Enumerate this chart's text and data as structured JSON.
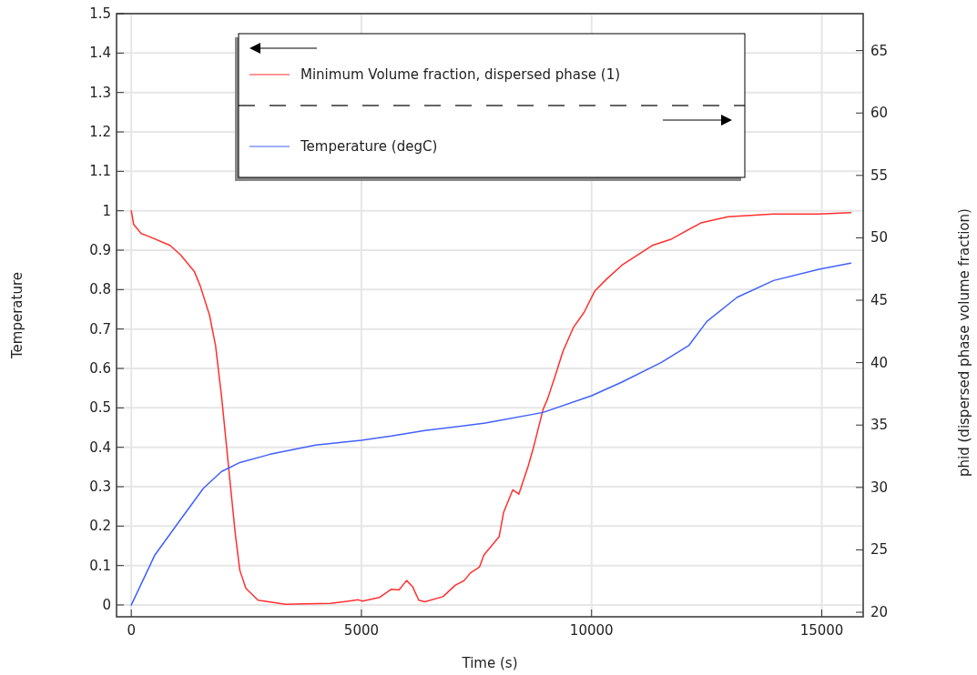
{
  "chart_data": {
    "type": "line",
    "xlabel": "Time (s)",
    "ylabel": "Temperature",
    "y2label": "phid (dispersed phase volume fraction)",
    "xlim": [
      -320,
      15900
    ],
    "ylim": [
      -0.03,
      1.5
    ],
    "y2lim": [
      19.64,
      67.96
    ],
    "xticks": [
      0,
      5000,
      10000,
      15000
    ],
    "yticks": [
      0,
      0.1,
      0.2,
      0.3,
      0.4,
      0.5,
      0.6,
      0.7,
      0.8,
      0.9,
      1,
      1.1,
      1.2,
      1.3,
      1.4,
      1.5
    ],
    "y2ticks": [
      20,
      25,
      30,
      35,
      40,
      45,
      50,
      55,
      60,
      65
    ],
    "grid": true,
    "legend": "top",
    "line_style": "solid",
    "marker": "none",
    "series": [
      {
        "name": "Minimum Volume fraction, dispersed phase (1)",
        "color": "#ff3030",
        "axis": "y",
        "x": [
          0,
          53,
          217,
          381,
          842,
          1073,
          1370,
          1502,
          1700,
          1831,
          1963,
          2062,
          2160,
          2259,
          2358,
          2490,
          2753,
          3346,
          4334,
          4730,
          4928,
          5026,
          5388,
          5652,
          5817,
          5981,
          6113,
          6245,
          6377,
          6772,
          7036,
          7233,
          7365,
          7563,
          7662,
          7826,
          7991,
          8089,
          8287,
          8419,
          8617,
          8748,
          8946,
          9045,
          9209,
          9374,
          9605,
          9836,
          10067,
          10330,
          10660,
          11318,
          11713,
          12372,
          12964,
          13953,
          14941,
          15632
        ],
        "values": [
          1.0,
          0.965,
          0.942,
          0.935,
          0.912,
          0.888,
          0.846,
          0.808,
          0.735,
          0.658,
          0.527,
          0.411,
          0.296,
          0.181,
          0.088,
          0.042,
          0.012,
          0.002,
          0.004,
          0.01,
          0.013,
          0.01,
          0.019,
          0.04,
          0.038,
          0.062,
          0.046,
          0.012,
          0.008,
          0.021,
          0.05,
          0.062,
          0.081,
          0.096,
          0.127,
          0.15,
          0.173,
          0.235,
          0.292,
          0.281,
          0.35,
          0.404,
          0.496,
          0.523,
          0.581,
          0.642,
          0.704,
          0.742,
          0.796,
          0.827,
          0.862,
          0.912,
          0.927,
          0.969,
          0.985,
          0.992,
          0.992,
          0.995
        ]
      },
      {
        "name": "Temperature (degC)",
        "color": "#4060ff",
        "axis": "y2",
        "x": [
          0,
          514,
          1040,
          1567,
          1963,
          2358,
          3017,
          4005,
          4993,
          5652,
          6377,
          7694,
          8946,
          10000,
          10660,
          11516,
          12109,
          12504,
          13163,
          13953,
          14941,
          15632
        ],
        "values": [
          20.58,
          24.6,
          27.27,
          29.93,
          31.28,
          32.0,
          32.66,
          33.39,
          33.78,
          34.12,
          34.56,
          35.16,
          36.01,
          37.35,
          38.44,
          40.02,
          41.36,
          43.3,
          45.24,
          46.58,
          47.48,
          47.97
        ]
      }
    ]
  }
}
